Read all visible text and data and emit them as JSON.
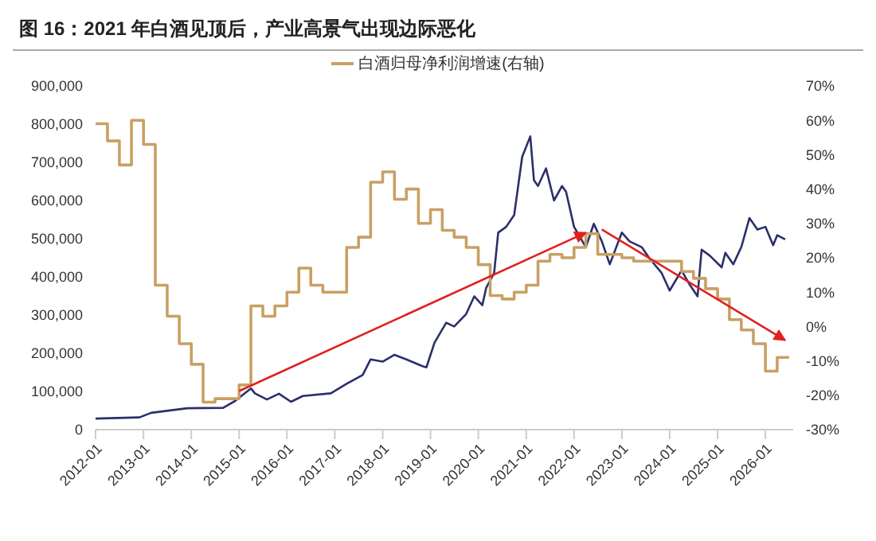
{
  "chart_data": {
    "type": "line",
    "title": "图 16：2021 年白酒见顶后，产业高景气出现边际恶化",
    "xlim": [
      "2012-01",
      "2026-08"
    ],
    "xticks": [
      "2012-01",
      "2013-01",
      "2014-01",
      "2015-01",
      "2016-01",
      "2017-01",
      "2018-01",
      "2019-01",
      "2020-01",
      "2021-01",
      "2022-01",
      "2023-01",
      "2024-01",
      "2025-01",
      "2026-01"
    ],
    "ylim": [
      0,
      900000
    ],
    "yticks": [
      0,
      {
        "value": 100000,
        "label": "100,000"
      },
      {
        "value": 200000,
        "label": "200,000"
      },
      {
        "value": 300000,
        "label": "300,000"
      },
      {
        "value": 400000,
        "label": "400,000"
      },
      {
        "value": 500000,
        "label": "500,000"
      },
      {
        "value": 600000,
        "label": "600,000"
      },
      {
        "value": 700000,
        "label": "700,000"
      },
      {
        "value": 800000,
        "label": "800,000"
      },
      {
        "value": 900000,
        "label": "900,000"
      }
    ],
    "y2lim": [
      -30,
      70
    ],
    "y2ticks": [
      {
        "value": -30,
        "label": "-30%"
      },
      {
        "value": -20,
        "label": "-20%"
      },
      {
        "value": -10,
        "label": "-10%"
      },
      {
        "value": 0,
        "label": "0%"
      },
      {
        "value": 10,
        "label": "10%"
      },
      {
        "value": 20,
        "label": "20%"
      },
      {
        "value": 30,
        "label": "30%"
      },
      {
        "value": 40,
        "label": "40%"
      },
      {
        "value": 50,
        "label": "50%"
      },
      {
        "value": 60,
        "label": "60%"
      },
      {
        "value": 70,
        "label": "70%"
      }
    ],
    "legend": "top",
    "series": [
      {
        "color": "#2b2f6b",
        "x": [
          "2012-01",
          "2012-12",
          "2013-03",
          "2013-12",
          "2014-09",
          "2014-12",
          "2015-04",
          "2015-05",
          "2015-08",
          "2015-11",
          "2016-02",
          "2016-05",
          "2016-12",
          "2017-04",
          "2017-08",
          "2017-10",
          "2018-01",
          "2018-04",
          "2018-07",
          "2018-11",
          "2018-12",
          "2019-02",
          "2019-05",
          "2019-07",
          "2019-10",
          "2019-12",
          "2020-02",
          "2020-03",
          "2020-05",
          "2020-06",
          "2020-08",
          "2020-10",
          "2020-12",
          "2021-02",
          "2021-03",
          "2021-04",
          "2021-06",
          "2021-08",
          "2021-10",
          "2021-11",
          "2022-01",
          "2022-04",
          "2022-06",
          "2022-08",
          "2022-10",
          "2023-01",
          "2023-03",
          "2023-06",
          "2023-08",
          "2023-11",
          "2024-01",
          "2024-04",
          "2024-06",
          "2024-08",
          "2024-09",
          "2024-11",
          "2025-02",
          "2025-03",
          "2025-05",
          "2025-07",
          "2025-09",
          "2025-11",
          "2026-01",
          "2026-03",
          "2026-04",
          "2026-06"
        ],
        "values": [
          29000,
          32000,
          44000,
          56000,
          57000,
          75000,
          108000,
          95000,
          79000,
          94000,
          73000,
          88000,
          95000,
          120000,
          143000,
          184000,
          178000,
          196000,
          184000,
          166000,
          163000,
          228000,
          280000,
          270000,
          303000,
          349000,
          326000,
          371000,
          410000,
          516000,
          531000,
          562000,
          714000,
          768000,
          653000,
          638000,
          684000,
          600000,
          638000,
          623000,
          531000,
          478000,
          539000,
          493000,
          433000,
          516000,
          493000,
          478000,
          448000,
          410000,
          364000,
          417000,
          380000,
          349000,
          471000,
          456000,
          425000,
          463000,
          433000,
          478000,
          554000,
          524000,
          531000,
          483000,
          509000,
          498000
        ]
      },
      {
        "type": "step",
        "name": "白酒归母净利润增速(右轴)",
        "color": "#c9a064",
        "axis": "y2",
        "x": [
          "2012-01",
          "2012-04",
          "2012-07",
          "2012-10",
          "2013-01",
          "2013-04",
          "2013-07",
          "2013-10",
          "2014-01",
          "2014-04",
          "2014-07",
          "2014-10",
          "2015-01",
          "2015-04",
          "2015-07",
          "2015-10",
          "2016-01",
          "2016-04",
          "2016-07",
          "2016-10",
          "2017-01",
          "2017-04",
          "2017-07",
          "2017-10",
          "2018-01",
          "2018-04",
          "2018-07",
          "2018-10",
          "2019-01",
          "2019-04",
          "2019-07",
          "2019-10",
          "2020-01",
          "2020-04",
          "2020-07",
          "2020-10",
          "2021-01",
          "2021-04",
          "2021-07",
          "2021-10",
          "2022-01",
          "2022-04",
          "2022-07",
          "2022-10",
          "2023-01",
          "2023-04",
          "2023-07",
          "2023-10",
          "2024-01",
          "2024-04",
          "2024-07",
          "2024-10",
          "2025-01",
          "2025-04",
          "2025-07",
          "2025-10",
          "2026-01",
          "2026-04",
          "2026-07"
        ],
        "values": [
          59,
          54,
          47,
          60,
          53,
          12,
          3,
          -5,
          -11,
          -22,
          -21,
          -21,
          -17,
          6,
          3,
          6,
          10,
          17,
          12,
          10,
          10,
          23,
          26,
          42,
          45,
          37,
          40,
          30,
          34,
          28,
          26,
          23,
          18,
          9,
          8,
          10,
          12,
          19,
          21,
          20,
          23,
          27,
          21,
          21,
          20,
          19,
          19,
          19,
          19,
          16,
          14,
          11,
          8,
          2,
          -1,
          -5,
          -13,
          -9,
          -9
        ]
      },
      {
        "color": "#e02020",
        "x": [
          "2015-01",
          "2022-04"
        ],
        "values": [
          101000,
          516000
        ]
      },
      {
        "color": "#e02020",
        "x": [
          "2022-08",
          "2026-06"
        ],
        "values": [
          524000,
          234000
        ]
      }
    ]
  }
}
